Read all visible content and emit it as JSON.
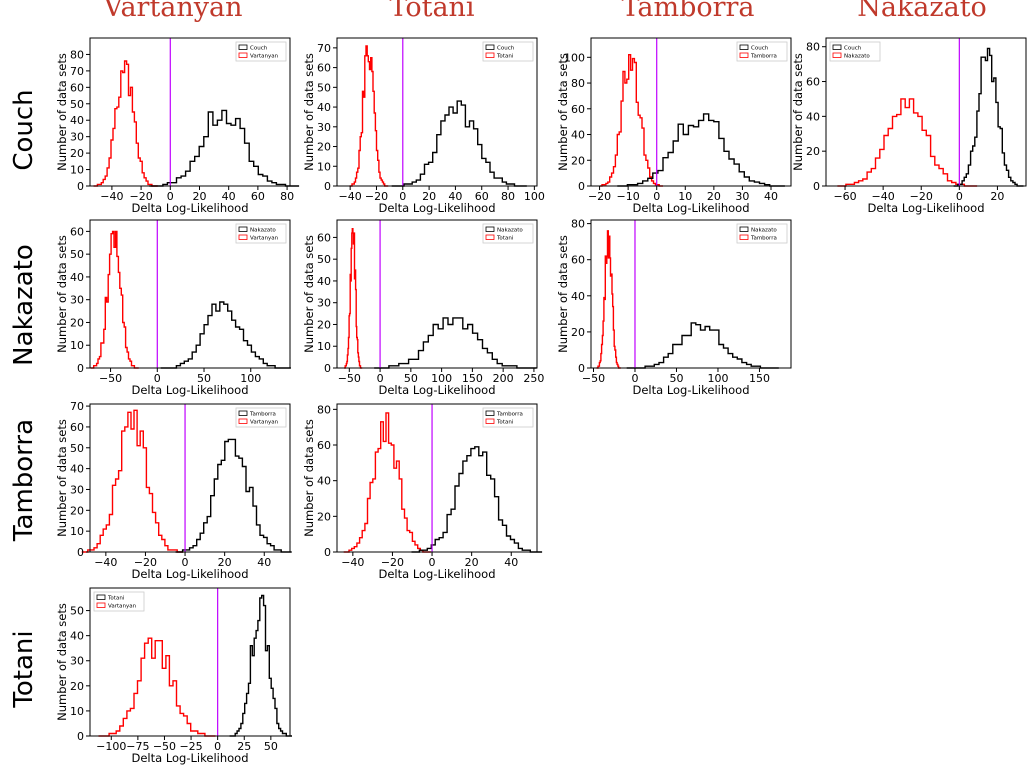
{
  "colors": {
    "null": "#000000",
    "alt": "#ff0000",
    "zero_line": "#bf00ff",
    "title": "#c0392b"
  },
  "columns": [
    "Vartanyan",
    "Totani",
    "Tamborra",
    "Nakazato"
  ],
  "rows": [
    "Couch",
    "Nakazato",
    "Tamborra",
    "Totani"
  ],
  "chart_data": [
    {
      "type": "histogram",
      "row": 0,
      "col": 0,
      "xlabel": "Delta Log-Likelihood",
      "ylabel": "Number of data sets",
      "xlim": [
        -55,
        82
      ],
      "ylim": [
        0,
        90
      ],
      "xticks": [
        -40,
        -20,
        0,
        20,
        40,
        60,
        80
      ],
      "yticks": [
        0,
        10,
        20,
        30,
        40,
        50,
        60,
        70,
        80
      ],
      "legend": "top-right",
      "vline": 0,
      "series": [
        {
          "name": "Couch",
          "mean": 36,
          "sd": 14,
          "peak": 48,
          "color": "null"
        },
        {
          "name": "Vartanyan",
          "mean": -31,
          "sd": 6,
          "peak": 76,
          "color": "alt"
        }
      ]
    },
    {
      "type": "histogram",
      "row": 0,
      "col": 1,
      "xlabel": "Delta Log-Likelihood",
      "ylabel": "Number of data sets",
      "xlim": [
        -50,
        102
      ],
      "ylim": [
        0,
        75
      ],
      "xticks": [
        -40,
        -20,
        0,
        20,
        40,
        60,
        80,
        100
      ],
      "yticks": [
        0,
        10,
        20,
        30,
        40,
        50,
        60,
        70
      ],
      "legend": "top-right",
      "vline": 0,
      "series": [
        {
          "name": "Couch",
          "mean": 42,
          "sd": 14,
          "peak": 44,
          "color": "null"
        },
        {
          "name": "Totani",
          "mean": -26,
          "sd": 4,
          "peak": 72,
          "color": "alt"
        }
      ]
    },
    {
      "type": "histogram",
      "row": 0,
      "col": 2,
      "xlabel": "Delta Log-Likelihood",
      "ylabel": "Number of data sets",
      "xlim": [
        -23,
        47
      ],
      "ylim": [
        0,
        115
      ],
      "xticks": [
        -20,
        -10,
        0,
        10,
        20,
        30,
        40
      ],
      "yticks": [
        0,
        20,
        40,
        60,
        80,
        100
      ],
      "legend": "top-right",
      "vline": 0,
      "series": [
        {
          "name": "Couch",
          "mean": 15,
          "sd": 8,
          "peak": 60,
          "color": "null"
        },
        {
          "name": "Tamborra",
          "mean": -9,
          "sd": 3,
          "peak": 108,
          "color": "alt"
        }
      ]
    },
    {
      "type": "histogram",
      "row": 0,
      "col": 3,
      "xlabel": "Delta Log-Likelihood",
      "ylabel": "Number of data sets",
      "xlim": [
        -70,
        35
      ],
      "ylim": [
        0,
        85
      ],
      "xticks": [
        -60,
        -40,
        -20,
        0,
        20
      ],
      "yticks": [
        0,
        20,
        40,
        60,
        80
      ],
      "legend": "top-left",
      "vline": 0,
      "series": [
        {
          "name": "Couch",
          "mean": 15,
          "sd": 5,
          "peak": 80,
          "color": "null"
        },
        {
          "name": "Nakazato",
          "mean": -28,
          "sd": 10,
          "peak": 51,
          "color": "alt"
        }
      ]
    },
    {
      "type": "histogram",
      "row": 1,
      "col": 0,
      "xlabel": "Delta Log-Likelihood",
      "ylabel": "Number of data sets",
      "xlim": [
        -72,
        142
      ],
      "ylim": [
        0,
        65
      ],
      "xticks": [
        -50,
        0,
        50,
        100
      ],
      "yticks": [
        0,
        10,
        20,
        30,
        40,
        50,
        60
      ],
      "legend": "top-right",
      "vline": 0,
      "series": [
        {
          "name": "Nakazato",
          "mean": 72,
          "sd": 19,
          "peak": 29,
          "color": "null"
        },
        {
          "name": "Vartanyan",
          "mean": -46,
          "sd": 7,
          "peak": 61,
          "color": "alt"
        }
      ]
    },
    {
      "type": "histogram",
      "row": 1,
      "col": 1,
      "xlabel": "Delta Log-Likelihood",
      "ylabel": "Number of data sets",
      "xlim": [
        -70,
        255
      ],
      "ylim": [
        0,
        68
      ],
      "xticks": [
        -50,
        0,
        50,
        100,
        150,
        200,
        250
      ],
      "yticks": [
        0,
        10,
        20,
        30,
        40,
        50,
        60
      ],
      "legend": "top-right",
      "vline": 0,
      "series": [
        {
          "name": "Nakazato",
          "mean": 120,
          "sd": 36,
          "peak": 24,
          "color": "null"
        },
        {
          "name": "Totani",
          "mean": -44,
          "sd": 4,
          "peak": 64,
          "color": "alt"
        }
      ]
    },
    {
      "type": "histogram",
      "row": 1,
      "col": 2,
      "xlabel": "Delta Log-Likelihood",
      "ylabel": "Number of data sets",
      "xlim": [
        -53,
        188
      ],
      "ylim": [
        0,
        82
      ],
      "xticks": [
        -50,
        0,
        50,
        100,
        150
      ],
      "yticks": [
        0,
        20,
        40,
        60,
        80
      ],
      "legend": "top-right",
      "vline": 0,
      "series": [
        {
          "name": "Nakazato",
          "mean": 80,
          "sd": 25,
          "peak": 26,
          "color": "null"
        },
        {
          "name": "Tamborra",
          "mean": -32,
          "sd": 4,
          "peak": 78,
          "color": "alt"
        }
      ]
    },
    {
      "type": "histogram",
      "row": 2,
      "col": 0,
      "xlabel": "Delta Log-Likelihood",
      "ylabel": "Number of data sets",
      "xlim": [
        -48,
        53
      ],
      "ylim": [
        0,
        71
      ],
      "xticks": [
        -40,
        -20,
        0,
        20,
        40
      ],
      "yticks": [
        0,
        10,
        20,
        30,
        40,
        50,
        60,
        70
      ],
      "legend": "top-right",
      "vline": 0,
      "series": [
        {
          "name": "Tamborra",
          "mean": 24,
          "sd": 8,
          "peak": 55,
          "color": "null"
        },
        {
          "name": "Vartanyan",
          "mean": -27,
          "sd": 7,
          "peak": 69,
          "color": "alt"
        }
      ]
    },
    {
      "type": "histogram",
      "row": 2,
      "col": 1,
      "xlabel": "Delta Log-Likelihood",
      "ylabel": "Number of data sets",
      "xlim": [
        -48,
        53
      ],
      "ylim": [
        0,
        83
      ],
      "xticks": [
        -40,
        -20,
        0,
        20,
        40
      ],
      "yticks": [
        0,
        20,
        40,
        60,
        80
      ],
      "legend": "top-right",
      "vline": 0,
      "series": [
        {
          "name": "Tamborra",
          "mean": 22,
          "sd": 9,
          "peak": 59,
          "color": "null"
        },
        {
          "name": "Totani",
          "mean": -23,
          "sd": 6,
          "peak": 78,
          "color": "alt"
        }
      ]
    },
    {
      "type": "histogram",
      "row": 3,
      "col": 0,
      "xlabel": "Delta Log-Likelihood",
      "ylabel": "Number of data sets",
      "xlim": [
        -120,
        68
      ],
      "ylim": [
        0,
        59
      ],
      "xticks": [
        -100,
        -75,
        -50,
        -25,
        0,
        25,
        50
      ],
      "yticks": [
        0,
        10,
        20,
        30,
        40,
        50
      ],
      "legend": "top-left",
      "vline": 0,
      "series": [
        {
          "name": "Totani",
          "mean": 40,
          "sd": 8,
          "peak": 56,
          "color": "null"
        },
        {
          "name": "Vartanyan",
          "mean": -58,
          "sd": 15,
          "peak": 39,
          "color": "alt"
        }
      ]
    }
  ]
}
